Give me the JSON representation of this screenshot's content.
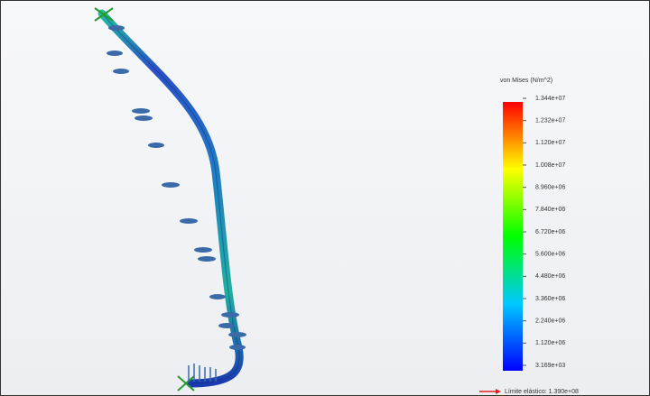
{
  "legend": {
    "title": "von Mises (N/m^2)",
    "labels": [
      "1.344e+07",
      "1.232e+07",
      "1.120e+07",
      "1.008e+07",
      "8.960e+06",
      "7.840e+06",
      "6.720e+06",
      "5.600e+06",
      "4.480e+06",
      "3.360e+06",
      "2.240e+06",
      "1.120e+06",
      "3.169e+03"
    ],
    "limit_label": "Límite elástico: 1.390e+08"
  }
}
